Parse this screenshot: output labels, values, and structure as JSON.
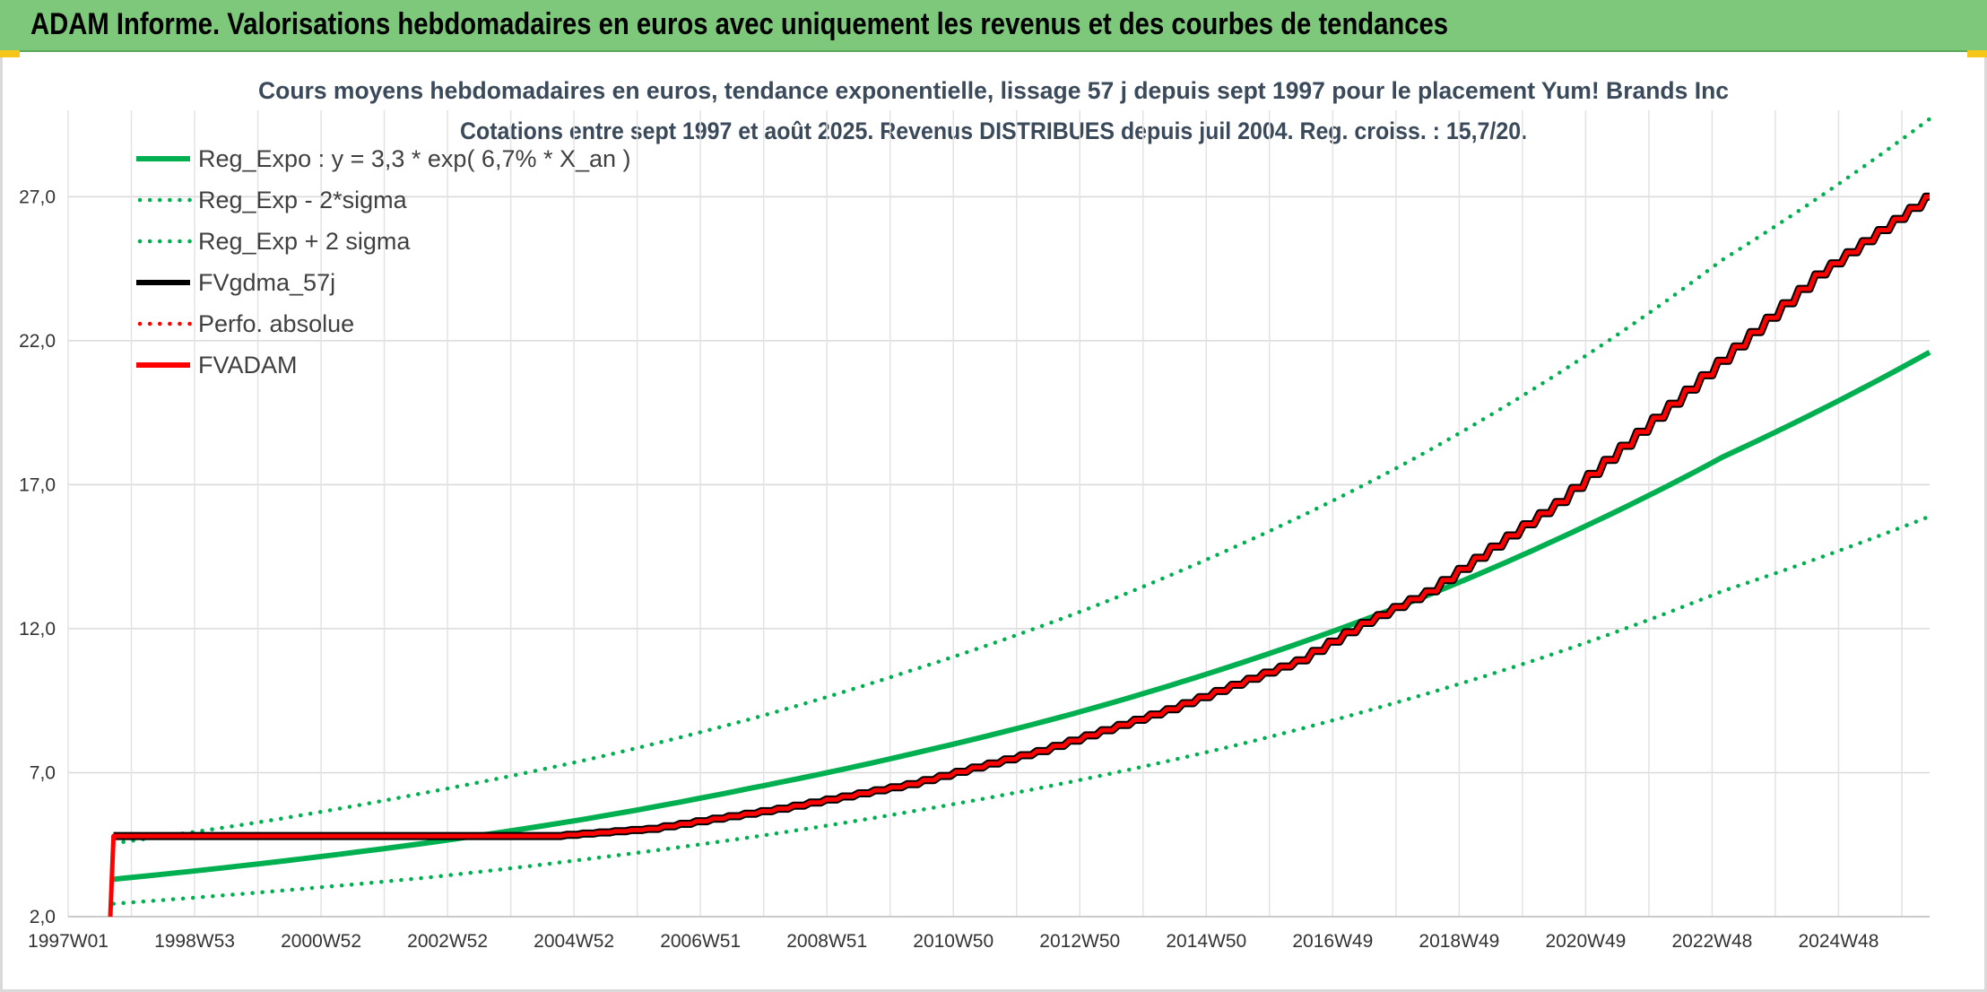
{
  "header": {
    "title": "ADAM Informe. Valorisations hebdomadaires en euros avec uniquement les revenus et des courbes de tendances"
  },
  "chart_data": {
    "type": "line",
    "title_line1": "Cours moyens hebdomadaires en euros, tendance exponentielle, lissage 57 j depuis sept 1997 pour le placement Yum! Brands Inc",
    "title_line2": "Cotations entre sept 1997 et août 2025. Revenus DISTRIBUES depuis juil 2004. Reg. croiss. : 15,7/20.",
    "x_ticks": [
      "1997W01",
      "1998W53",
      "2000W52",
      "2002W52",
      "2004W52",
      "2006W51",
      "2008W51",
      "2010W50",
      "2012W50",
      "2014W50",
      "2016W49",
      "2018W49",
      "2020W49",
      "2022W48",
      "2024W48"
    ],
    "x_range": [
      1997.0,
      2025.7
    ],
    "y_ticks": [
      "2,0",
      "7,0",
      "12,0",
      "17,0",
      "22,0",
      "27,0"
    ],
    "ylim": [
      2.0,
      30.0
    ],
    "grid": true,
    "legend_position": "top-left",
    "series": [
      {
        "name": "Reg_Expo : y = 3,3 * exp( 6,7% *  X_an )",
        "color": "#00b050",
        "style": "solid",
        "x": [
          1997.7,
          2000.0,
          2002.5,
          2005.0,
          2007.5,
          2010.0,
          2012.5,
          2015.0,
          2017.5,
          2020.0,
          2022.5,
          2025.7
        ],
        "values": [
          3.3,
          3.85,
          4.55,
          5.4,
          6.45,
          7.65,
          9.05,
          10.75,
          12.75,
          15.15,
          17.95,
          21.6
        ]
      },
      {
        "name": "Reg_Exp - 2*sigma",
        "color": "#00b050",
        "style": "dotted",
        "x": [
          1997.7,
          2000.0,
          2002.5,
          2005.0,
          2007.5,
          2010.0,
          2012.5,
          2015.0,
          2017.5,
          2020.0,
          2022.5,
          2025.7
        ],
        "values": [
          2.45,
          2.85,
          3.35,
          4.0,
          4.75,
          5.65,
          6.7,
          7.95,
          9.45,
          11.2,
          13.3,
          15.9
        ]
      },
      {
        "name": "Reg_Exp + 2 sigma",
        "color": "#00b050",
        "style": "dotted",
        "x": [
          1997.7,
          2000.0,
          2002.5,
          2005.0,
          2007.5,
          2010.0,
          2012.5,
          2015.0,
          2017.5,
          2020.0,
          2022.5,
          2025.7
        ],
        "values": [
          4.55,
          5.3,
          6.3,
          7.45,
          8.85,
          10.55,
          12.5,
          14.85,
          17.6,
          20.9,
          24.8,
          29.7
        ]
      },
      {
        "name": "FVgdma_57j",
        "color": "#000000",
        "style": "solid",
        "x": [
          1997.7,
          2004.5,
          2006.0,
          2008.0,
          2010.0,
          2012.0,
          2014.0,
          2016.0,
          2017.0,
          2018.0,
          2020.0,
          2022.0,
          2024.0,
          2025.7
        ],
        "values": [
          4.8,
          4.8,
          5.05,
          5.75,
          6.6,
          7.75,
          9.2,
          10.9,
          12.2,
          13.3,
          16.4,
          20.3,
          24.3,
          27.0
        ]
      },
      {
        "name": "Perfo. absolue",
        "color": "#ff0000",
        "style": "dotted",
        "x": [],
        "values": []
      },
      {
        "name": "FVADAM",
        "color": "#ff0000",
        "style": "solid",
        "x": [
          1997.65,
          1997.7,
          2004.5,
          2006.0,
          2008.0,
          2010.0,
          2012.0,
          2014.0,
          2016.0,
          2017.0,
          2018.0,
          2020.0,
          2022.0,
          2024.0,
          2025.7
        ],
        "values": [
          2.0,
          4.8,
          4.8,
          5.05,
          5.75,
          6.6,
          7.75,
          9.2,
          10.9,
          12.2,
          13.3,
          16.4,
          20.3,
          24.3,
          27.0
        ]
      }
    ]
  }
}
